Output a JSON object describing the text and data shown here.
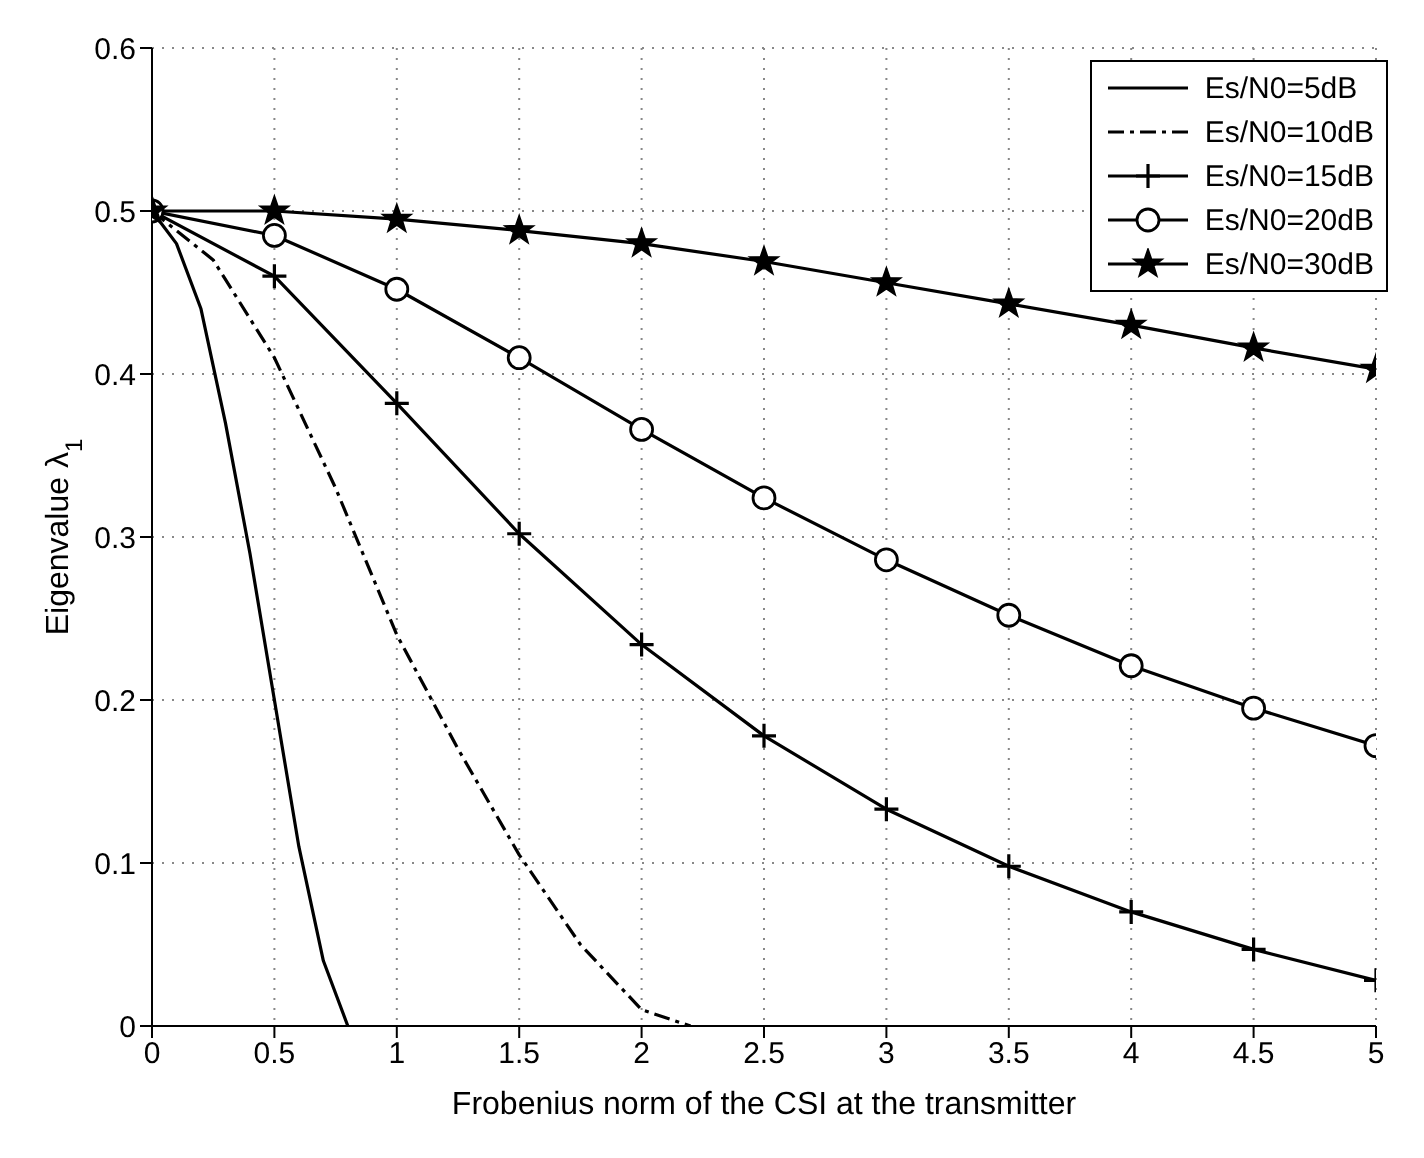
{
  "chart_data": {
    "type": "line",
    "xlabel": "Frobenius norm of the CSI at the transmitter",
    "ylabel": "Eigenvalue λ$_{1}$",
    "xlim": [
      0,
      5
    ],
    "xticks": [
      0,
      0.5,
      1,
      1.5,
      2,
      2.5,
      3,
      3.5,
      4,
      4.5,
      5
    ],
    "ylim": [
      0,
      0.6
    ],
    "yticks": [
      0,
      0.1,
      0.2,
      0.3,
      0.4,
      0.5,
      0.6
    ],
    "grid": true,
    "legend": "top right",
    "series": [
      {
        "name": "Es/N0=5dB",
        "color": "#000000",
        "marker": "none",
        "line_style": "solid",
        "x": [
          0,
          0.1,
          0.2,
          0.3,
          0.4,
          0.5,
          0.6,
          0.7,
          0.8
        ],
        "values": [
          0.5,
          0.48,
          0.44,
          0.37,
          0.29,
          0.2,
          0.11,
          0.04,
          0
        ]
      },
      {
        "name": "Es/N0=10dB",
        "color": "#000000",
        "marker": "none",
        "line_style": "dashdot",
        "x": [
          0,
          0.25,
          0.5,
          0.75,
          1,
          1.25,
          1.5,
          1.75,
          2,
          2.2
        ],
        "values": [
          0.5,
          0.47,
          0.41,
          0.33,
          0.24,
          0.17,
          0.105,
          0.05,
          0.01,
          0
        ]
      },
      {
        "name": "Es/N0=15dB",
        "color": "#000000",
        "marker": "cross",
        "line_style": "solid",
        "x": [
          0,
          0.5,
          1,
          1.5,
          2,
          2.5,
          3,
          3.5,
          4,
          4.5,
          5
        ],
        "values": [
          0.5,
          0.46,
          0.382,
          0.302,
          0.234,
          0.178,
          0.133,
          0.098,
          0.07,
          0.047,
          0.028
        ]
      },
      {
        "name": "Es/N0=20dB",
        "color": "#000000",
        "marker": "circle",
        "line_style": "solid",
        "x": [
          0,
          0.5,
          1,
          1.5,
          2,
          2.5,
          3,
          3.5,
          4,
          4.5,
          5
        ],
        "values": [
          0.5,
          0.485,
          0.452,
          0.41,
          0.366,
          0.324,
          0.286,
          0.252,
          0.221,
          0.195,
          0.172
        ]
      },
      {
        "name": "Es/N0=30dB",
        "color": "#000000",
        "marker": "star",
        "line_style": "solid",
        "x": [
          0,
          0.5,
          1,
          1.5,
          2,
          2.5,
          3,
          3.5,
          4,
          4.5,
          5
        ],
        "values": [
          0.5,
          0.5,
          0.495,
          0.488,
          0.48,
          0.469,
          0.456,
          0.443,
          0.43,
          0.416,
          0.403
        ]
      }
    ]
  }
}
